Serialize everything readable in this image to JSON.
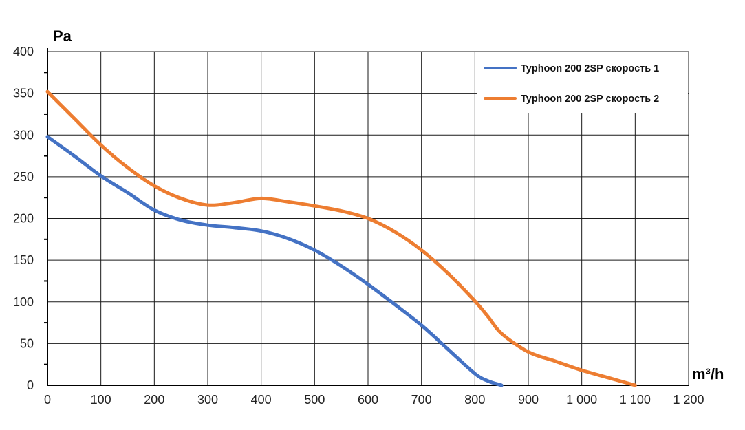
{
  "chart_data": {
    "type": "line",
    "title": "",
    "xlabel": "m³/h",
    "ylabel": "Pa",
    "xlim": [
      0,
      1200
    ],
    "ylim": [
      0,
      400
    ],
    "grid": true,
    "legend_position": "top-right",
    "x_ticks": [
      0,
      100,
      200,
      300,
      400,
      500,
      600,
      700,
      800,
      900,
      1000,
      1100,
      1200
    ],
    "x_tick_labels": [
      "0",
      "100",
      "200",
      "300",
      "400",
      "500",
      "600",
      "700",
      "800",
      "900",
      "1 000",
      "1 100",
      "1 200"
    ],
    "y_ticks": [
      0,
      50,
      100,
      150,
      200,
      250,
      300,
      350,
      400
    ],
    "y_tick_labels": [
      "0",
      "50",
      "100",
      "150",
      "200",
      "250",
      "300",
      "350",
      "400"
    ],
    "series": [
      {
        "name": "Typhoon 200 2SP скорость 1",
        "color": "#4472C4",
        "x": [
          0,
          50,
          100,
          150,
          200,
          250,
          300,
          350,
          400,
          450,
          500,
          550,
          600,
          650,
          700,
          750,
          800,
          825,
          850
        ],
        "y": [
          298,
          275,
          251,
          231,
          210,
          198,
          192,
          189,
          185,
          176,
          162,
          143,
          121,
          97,
          72,
          43,
          14,
          5,
          0
        ]
      },
      {
        "name": "Typhoon 200 2SP скорость 2",
        "color": "#ED7D31",
        "x": [
          0,
          50,
          100,
          150,
          200,
          250,
          300,
          350,
          400,
          450,
          500,
          550,
          600,
          650,
          700,
          750,
          800,
          825,
          850,
          900,
          950,
          1000,
          1050,
          1100
        ],
        "y": [
          352,
          320,
          288,
          261,
          239,
          224,
          216,
          219,
          224,
          220,
          215,
          209,
          200,
          184,
          162,
          134,
          101,
          82,
          62,
          40,
          29,
          18,
          9,
          0
        ]
      }
    ]
  }
}
